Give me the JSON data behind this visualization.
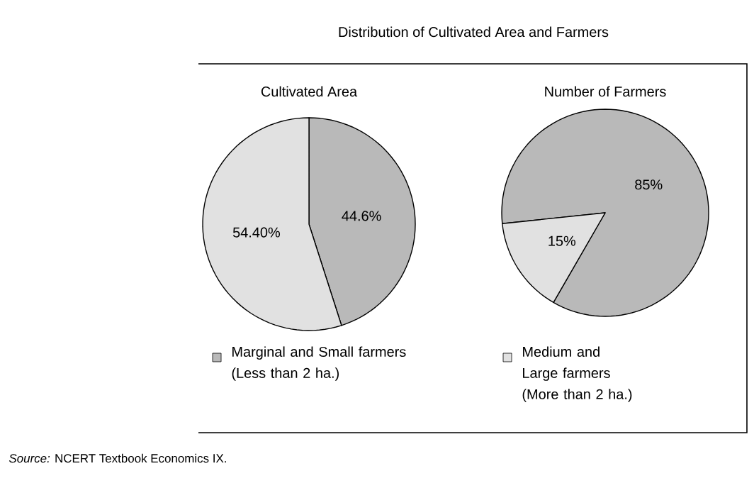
{
  "chart_data": [
    {
      "type": "pie",
      "title": "Distribution of Cultivated Area and Farmers",
      "subtitle": "Cultivated Area",
      "categories": [
        "Marginal and Small farmers (Less than 2 ha.)",
        "Medium and Large farmers (More than 2 ha.)"
      ],
      "values": [
        44.6,
        54.4
      ],
      "value_labels": [
        "44.6%",
        "54.40%"
      ],
      "colors": [
        "#b9b9b9",
        "#e1e1e1"
      ],
      "legend": "bottom"
    },
    {
      "type": "pie",
      "subtitle": "Number of Farmers",
      "categories": [
        null,
        null
      ],
      "values": [
        85,
        15
      ],
      "value_labels": [
        "85%",
        "15%"
      ],
      "colors": [
        "#b9b9b9",
        "#e1e1e1"
      ],
      "annotations": [
        "*Source:* NCERT Textbook Economics IX."
      ]
    }
  ]
}
